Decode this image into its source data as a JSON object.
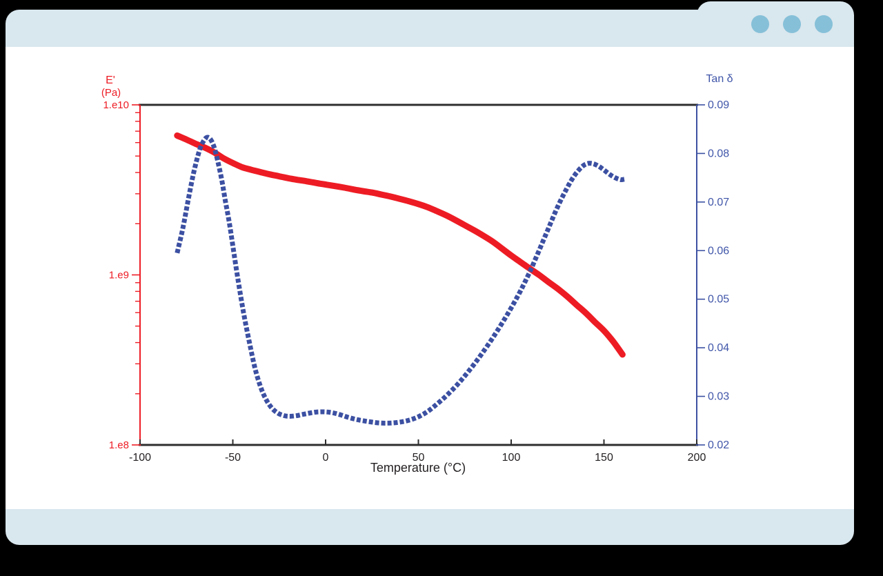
{
  "window": {
    "title": "",
    "controls": {
      "dot_count": 3
    },
    "colors": {
      "titlebar": "#d9e7ee",
      "dots": "#86c0d8",
      "window_body": "#ffffff",
      "background": "#000000"
    }
  },
  "chart_data": {
    "type": "line",
    "title": "",
    "grid": "off",
    "legend": "none (axis-colored labels)",
    "x_axis": {
      "label": "Temperature (°C)",
      "min": -100,
      "max": 200,
      "ticks": [
        -100,
        -50,
        0,
        50,
        100,
        150,
        200
      ]
    },
    "y_left": {
      "label": "E'",
      "sublabel": "(Pa)",
      "scale": "log",
      "min": 100000000.0,
      "max": 10000000000.0,
      "ticks": [
        10000000000.0,
        1000000000.0,
        100000000.0
      ],
      "tick_labels": [
        "1.e10",
        "1.e9",
        "1.e8"
      ],
      "color": "#ed1c24"
    },
    "y_right": {
      "label": "Tan δ",
      "scale": "linear",
      "min": 0.02,
      "max": 0.09,
      "ticks": [
        0.09,
        0.08,
        0.07,
        0.06,
        0.05,
        0.04,
        0.03,
        0.02
      ],
      "color": "#3c50a2"
    },
    "series": [
      {
        "name": "E' (Pa)",
        "axis": "left",
        "color": "#ed1c24",
        "style": "solid",
        "points": [
          [
            -80,
            6600000000.0
          ],
          [
            -75,
            6250000000.0
          ],
          [
            -70,
            5900000000.0
          ],
          [
            -65,
            5600000000.0
          ],
          [
            -60,
            5250000000.0
          ],
          [
            -55,
            4850000000.0
          ],
          [
            -50,
            4550000000.0
          ],
          [
            -45,
            4300000000.0
          ],
          [
            -40,
            4150000000.0
          ],
          [
            -35,
            4020000000.0
          ],
          [
            -30,
            3900000000.0
          ],
          [
            -25,
            3800000000.0
          ],
          [
            -20,
            3700000000.0
          ],
          [
            -15,
            3620000000.0
          ],
          [
            -10,
            3550000000.0
          ],
          [
            -5,
            3470000000.0
          ],
          [
            0,
            3400000000.0
          ],
          [
            5,
            3330000000.0
          ],
          [
            10,
            3260000000.0
          ],
          [
            15,
            3180000000.0
          ],
          [
            20,
            3110000000.0
          ],
          [
            25,
            3050000000.0
          ],
          [
            30,
            2970000000.0
          ],
          [
            35,
            2890000000.0
          ],
          [
            40,
            2800000000.0
          ],
          [
            45,
            2710000000.0
          ],
          [
            50,
            2610000000.0
          ],
          [
            55,
            2500000000.0
          ],
          [
            60,
            2370000000.0
          ],
          [
            65,
            2240000000.0
          ],
          [
            70,
            2100000000.0
          ],
          [
            75,
            1960000000.0
          ],
          [
            80,
            1830000000.0
          ],
          [
            85,
            1700000000.0
          ],
          [
            90,
            1570000000.0
          ],
          [
            95,
            1430000000.0
          ],
          [
            100,
            1300000000.0
          ],
          [
            105,
            1190000000.0
          ],
          [
            110,
            1090000000.0
          ],
          [
            115,
            1000000000.0
          ],
          [
            120,
            910000000.0
          ],
          [
            125,
            830000000.0
          ],
          [
            130,
            750000000.0
          ],
          [
            135,
            670000000.0
          ],
          [
            140,
            600000000.0
          ],
          [
            145,
            530000000.0
          ],
          [
            150,
            470000000.0
          ],
          [
            155,
            405000000.0
          ],
          [
            160,
            340000000.0
          ]
        ]
      },
      {
        "name": "Tan δ",
        "axis": "right",
        "color": "#3c50a2",
        "style": "dotted",
        "points": [
          [
            -80,
            0.0595
          ],
          [
            -77,
            0.0645
          ],
          [
            -74,
            0.0705
          ],
          [
            -71,
            0.0762
          ],
          [
            -68,
            0.0806
          ],
          [
            -66,
            0.0824
          ],
          [
            -64,
            0.0833
          ],
          [
            -62,
            0.0829
          ],
          [
            -60,
            0.0812
          ],
          [
            -58,
            0.0782
          ],
          [
            -56,
            0.0746
          ],
          [
            -54,
            0.0702
          ],
          [
            -52,
            0.066
          ],
          [
            -50,
            0.061
          ],
          [
            -47,
            0.0535
          ],
          [
            -44,
            0.0468
          ],
          [
            -41,
            0.041
          ],
          [
            -38,
            0.0357
          ],
          [
            -35,
            0.0319
          ],
          [
            -32,
            0.0293
          ],
          [
            -29,
            0.0276
          ],
          [
            -26,
            0.0266
          ],
          [
            -23,
            0.0261
          ],
          [
            -20,
            0.0259
          ],
          [
            -16,
            0.026
          ],
          [
            -12,
            0.0263
          ],
          [
            -8,
            0.0266
          ],
          [
            -4,
            0.0268
          ],
          [
            0,
            0.0268
          ],
          [
            4,
            0.0266
          ],
          [
            8,
            0.0262
          ],
          [
            12,
            0.0257
          ],
          [
            16,
            0.0253
          ],
          [
            20,
            0.025
          ],
          [
            25,
            0.0247
          ],
          [
            30,
            0.0245
          ],
          [
            35,
            0.0245
          ],
          [
            40,
            0.0247
          ],
          [
            45,
            0.0251
          ],
          [
            50,
            0.0258
          ],
          [
            55,
            0.0269
          ],
          [
            60,
            0.0284
          ],
          [
            65,
            0.0301
          ],
          [
            70,
            0.032
          ],
          [
            75,
            0.0342
          ],
          [
            80,
            0.0366
          ],
          [
            85,
            0.0392
          ],
          [
            90,
            0.042
          ],
          [
            95,
            0.045
          ],
          [
            100,
            0.0482
          ],
          [
            105,
            0.0517
          ],
          [
            110,
            0.0556
          ],
          [
            115,
            0.06
          ],
          [
            120,
            0.0645
          ],
          [
            125,
            0.069
          ],
          [
            130,
            0.0728
          ],
          [
            134,
            0.0754
          ],
          [
            138,
            0.0772
          ],
          [
            141,
            0.0779
          ],
          [
            144,
            0.0779
          ],
          [
            147,
            0.0774
          ],
          [
            150,
            0.0766
          ],
          [
            153,
            0.0757
          ],
          [
            156,
            0.075
          ],
          [
            159,
            0.0746
          ],
          [
            161,
            0.0747
          ]
        ]
      }
    ]
  }
}
